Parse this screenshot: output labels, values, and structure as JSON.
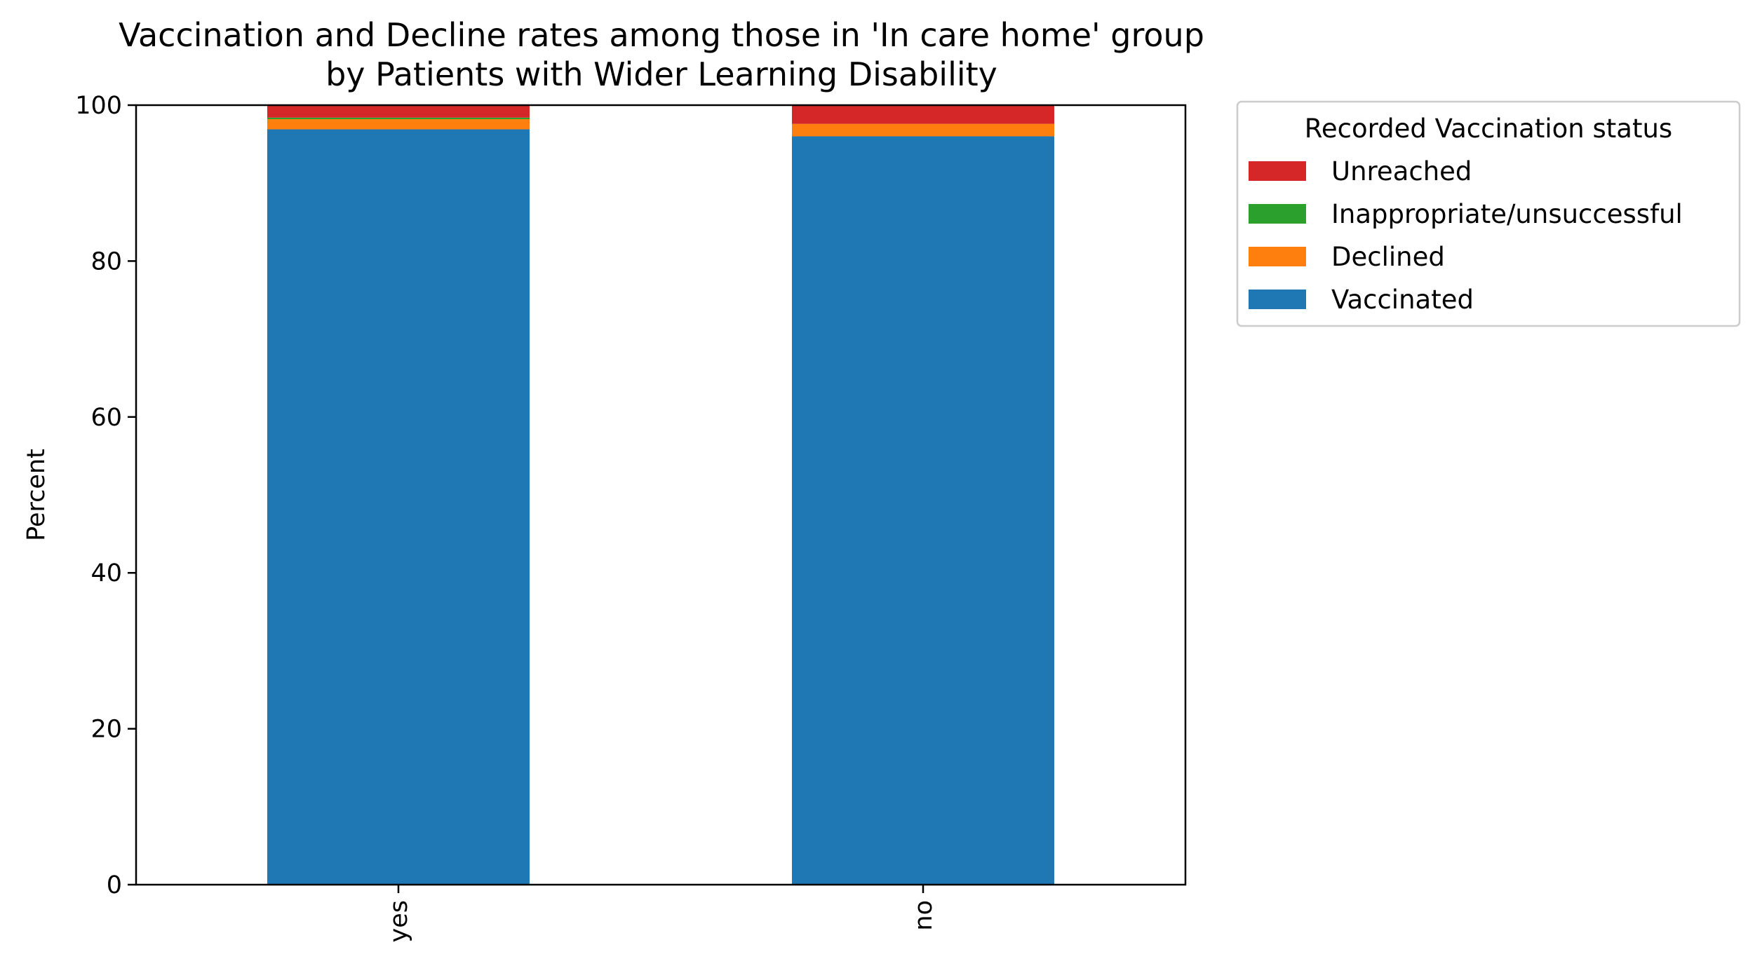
{
  "chart_data": {
    "type": "bar",
    "stacked": true,
    "title": "Vaccination and Decline rates among those in 'In care home' group",
    "subtitle": "by Patients with Wider Learning Disability",
    "xlabel": "",
    "ylabel": "Percent",
    "ylim": [
      0,
      100
    ],
    "yticks": [
      "0",
      "20",
      "40",
      "60",
      "80",
      "100"
    ],
    "categories": [
      "yes",
      "no"
    ],
    "series": [
      {
        "name": "Vaccinated",
        "color": "#1f77b4",
        "values": [
          96.9,
          96.0
        ]
      },
      {
        "name": "Declined",
        "color": "#ff7f0e",
        "values": [
          1.3,
          1.6
        ]
      },
      {
        "name": "Inappropriate/unsuccessful",
        "color": "#2ca02c",
        "values": [
          0.2,
          0.0
        ]
      },
      {
        "name": "Unreached",
        "color": "#d62728",
        "values": [
          1.6,
          2.4
        ]
      }
    ],
    "legend": {
      "title": "Recorded Vaccination status",
      "placement": "outside-right-top",
      "order": [
        "Unreached",
        "Inappropriate/unsuccessful",
        "Declined",
        "Vaccinated"
      ]
    },
    "grid": false
  }
}
